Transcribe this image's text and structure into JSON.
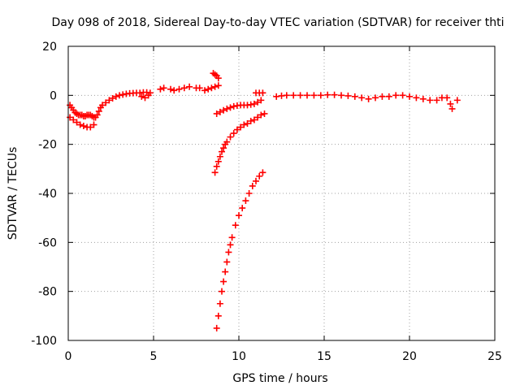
{
  "chart_data": {
    "type": "scatter",
    "title": "Day 098 of 2018, Sidereal Day-to-day VTEC variation (SDTVAR) for receiver thti",
    "xlabel": "GPS time / hours",
    "ylabel": "SDTVAR / TECUs",
    "xlim": [
      0,
      25
    ],
    "ylim": [
      -100,
      20
    ],
    "xticks": [
      "0",
      "5",
      "10",
      "15",
      "20",
      "25"
    ],
    "yticks": [
      "20",
      "0",
      "-20",
      "-40",
      "-60",
      "-80",
      "-100"
    ],
    "grid": true,
    "marker": "plus",
    "color": "#ff0000",
    "series": [
      {
        "x": [
          0.1,
          0.2,
          0.3,
          0.4,
          0.5,
          0.6,
          0.7,
          0.8,
          0.9,
          1.0,
          1.1,
          1.2,
          1.3,
          1.4,
          1.5,
          1.6,
          1.7,
          1.8,
          1.9,
          2.0,
          2.2,
          2.4,
          2.6,
          2.8,
          3.0,
          3.2,
          3.4,
          3.6,
          3.8,
          4.0,
          4.2,
          4.4,
          4.6,
          4.8
        ],
        "y": [
          -4,
          -5,
          -6,
          -7,
          -7.5,
          -8,
          -8,
          -8,
          -8.5,
          -8.5,
          -8,
          -8,
          -8,
          -8.5,
          -9,
          -9,
          -8,
          -6.5,
          -5,
          -4,
          -3,
          -2,
          -1.2,
          -0.5,
          0,
          0.3,
          0.6,
          0.8,
          0.9,
          1,
          1,
          1.2,
          1.2,
          1
        ]
      },
      {
        "x": [
          0.1,
          0.3,
          0.5,
          0.7,
          0.9,
          1.1,
          1.3,
          1.5
        ],
        "y": [
          -9,
          -10,
          -11,
          -12,
          -12.5,
          -13,
          -13,
          -12
        ]
      },
      {
        "x": [
          4.3,
          4.5,
          4.7,
          5.4,
          5.6,
          6.0,
          6.2,
          6.5,
          6.8,
          7.1,
          7.5,
          7.7,
          8.0,
          8.2,
          8.4,
          8.6,
          8.8
        ],
        "y": [
          -0.5,
          -1,
          0,
          2.5,
          3,
          2.5,
          2,
          2.5,
          3,
          3.5,
          3,
          3,
          2,
          2.5,
          3,
          3.5,
          4
        ]
      },
      {
        "x": [
          8.5,
          8.6,
          8.7,
          8.8
        ],
        "y": [
          9,
          8.5,
          8,
          7
        ]
      },
      {
        "x": [
          8.7,
          8.9,
          9.1,
          9.3,
          9.5,
          9.7,
          9.9,
          10.1,
          10.3,
          10.5,
          10.7,
          10.9,
          11.1,
          11.3
        ],
        "y": [
          -7.5,
          -6.8,
          -6.1,
          -5.5,
          -5,
          -4.5,
          -4.2,
          -4,
          -4,
          -4,
          -3.8,
          -3.5,
          -2.8,
          -2
        ]
      },
      {
        "x": [
          8.6,
          8.7,
          8.8,
          8.9,
          9.0,
          9.1,
          9.2,
          9.3,
          9.5,
          9.7,
          9.9,
          10.1,
          10.3,
          10.5,
          10.7,
          10.9,
          11.1,
          11.3,
          11.5
        ],
        "y": [
          -31.5,
          -29,
          -27,
          -25,
          -23,
          -21.5,
          -20,
          -19,
          -17,
          -15.5,
          -14,
          -13,
          -12,
          -11.5,
          -10.5,
          -10,
          -9,
          -8,
          -7.5
        ]
      },
      {
        "x": [
          8.7,
          8.8,
          8.9,
          9.0,
          9.1,
          9.2,
          9.3,
          9.4,
          9.5,
          9.6,
          9.8,
          10.0,
          10.2,
          10.4,
          10.6,
          10.8,
          11.0,
          11.2,
          11.4
        ],
        "y": [
          -95,
          -90,
          -85,
          -80,
          -76,
          -72,
          -68,
          -64,
          -61,
          -58,
          -53,
          -49,
          -46,
          -43,
          -40,
          -37,
          -35,
          -33,
          -31.5
        ]
      },
      {
        "x": [
          11.0,
          11.2,
          11.4
        ],
        "y": [
          1,
          1,
          1
        ]
      },
      {
        "x": [
          12.2,
          12.5,
          12.8,
          13.2,
          13.6,
          14.0,
          14.4,
          14.8,
          15.2,
          15.6,
          16.0,
          16.4,
          16.8,
          17.2,
          17.6,
          18.0,
          18.4,
          18.8,
          19.2,
          19.6,
          20.0,
          20.4,
          20.8,
          21.2,
          21.6,
          21.9,
          22.2,
          22.4,
          22.5,
          22.8
        ],
        "y": [
          -0.5,
          -0.2,
          0,
          0,
          0,
          0,
          0,
          0,
          0.2,
          0.2,
          0,
          -0.2,
          -0.5,
          -1,
          -1.5,
          -1,
          -0.5,
          -0.5,
          0,
          0,
          -0.5,
          -1,
          -1.5,
          -2,
          -2,
          -1,
          -1,
          -3.5,
          -5.5,
          -2
        ]
      }
    ]
  }
}
